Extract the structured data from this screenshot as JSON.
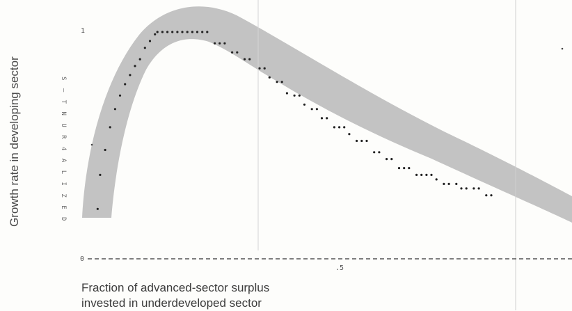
{
  "chart_data": {
    "type": "scatter",
    "ylabel": "Growth rate in developing sector",
    "xlabel_lines": [
      "Fraction of advanced-sector surplus",
      "invested in underdeveloped sector"
    ],
    "printout_axis_label": "S — T  N U R 4 A L I Z E D",
    "y_tick_labels": [
      "1",
      "0"
    ],
    "x_tick_labels": [
      ".5"
    ],
    "xlim": [
      0,
      0.9
    ],
    "ylim": [
      0,
      1
    ],
    "band_color": "#b9b9b9",
    "point_color": "#222222",
    "series": [
      {
        "x": [
          0.02,
          0.025,
          0.035,
          0.045,
          0.055,
          0.065,
          0.075,
          0.085,
          0.095,
          0.105,
          0.115,
          0.125,
          0.135,
          0.14,
          0.15,
          0.16,
          0.17,
          0.18,
          0.19,
          0.2,
          0.21,
          0.22,
          0.23,
          0.24,
          0.255,
          0.265,
          0.275,
          0.29,
          0.3,
          0.315,
          0.325,
          0.345,
          0.355,
          0.365,
          0.38,
          0.39,
          0.4,
          0.415,
          0.425,
          0.435,
          0.45,
          0.46,
          0.47,
          0.48,
          0.495,
          0.505,
          0.515,
          0.525,
          0.54,
          0.55,
          0.56,
          0.575,
          0.585,
          0.6,
          0.61,
          0.625,
          0.635,
          0.645,
          0.66,
          0.67,
          0.68,
          0.69,
          0.7,
          0.715,
          0.725,
          0.74,
          0.75,
          0.76,
          0.775,
          0.785,
          0.8,
          0.81
        ],
        "y": [
          0.22,
          0.37,
          0.48,
          0.58,
          0.66,
          0.72,
          0.77,
          0.81,
          0.85,
          0.88,
          0.93,
          0.96,
          0.99,
          1.0,
          1.0,
          1.0,
          1.0,
          1.0,
          1.0,
          1.0,
          1.0,
          1.0,
          1.0,
          1.0,
          0.95,
          0.95,
          0.95,
          0.91,
          0.91,
          0.88,
          0.88,
          0.84,
          0.84,
          0.8,
          0.78,
          0.78,
          0.73,
          0.72,
          0.72,
          0.68,
          0.66,
          0.66,
          0.62,
          0.62,
          0.58,
          0.58,
          0.58,
          0.55,
          0.52,
          0.52,
          0.52,
          0.47,
          0.47,
          0.44,
          0.44,
          0.4,
          0.4,
          0.4,
          0.37,
          0.37,
          0.37,
          0.37,
          0.35,
          0.33,
          0.33,
          0.33,
          0.31,
          0.31,
          0.31,
          0.31,
          0.28,
          0.28
        ]
      }
    ]
  }
}
